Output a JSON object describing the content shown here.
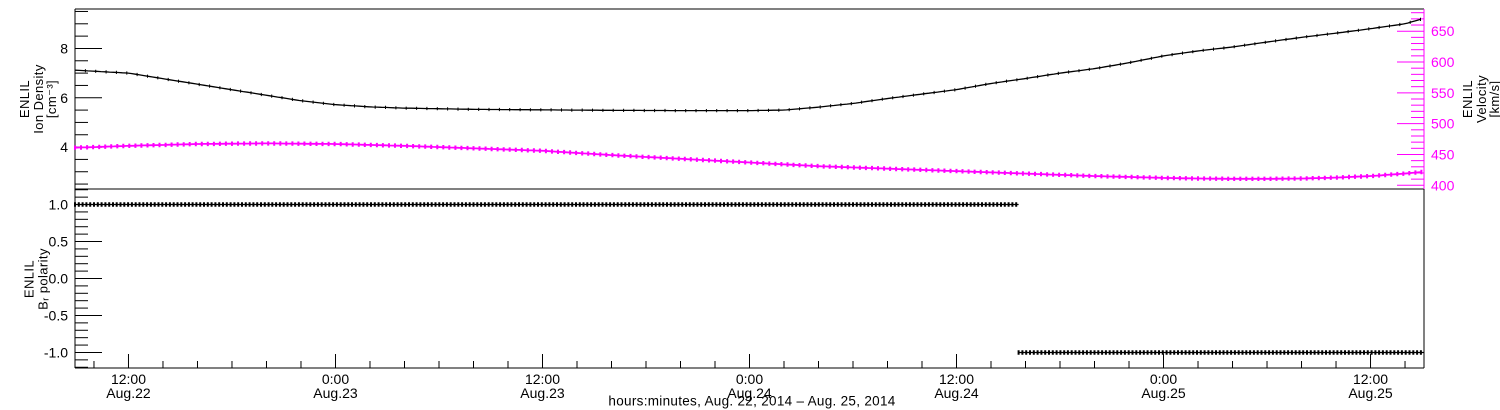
{
  "colors": {
    "background": "#ffffff",
    "foreground": "#000000",
    "velocity_accent": "#ff00ff"
  },
  "axis_titles": {
    "density": [
      "ENLIL",
      "Ion Density",
      "[cm⁻³]"
    ],
    "polarity": [
      "ENLIL",
      "Bᵣ polarity"
    ],
    "velocity": [
      "ENLIL",
      "Velocity",
      "[km/s]"
    ]
  },
  "x_axis": {
    "title": "hours:minutes, Aug. 22, 2014 – Aug. 25, 2014",
    "range_hours": [
      8.9,
      87.1
    ],
    "minor_step_hours": 2,
    "major_ticks": [
      {
        "hour": 12,
        "time": "12:00",
        "date": "Aug.22"
      },
      {
        "hour": 24,
        "time": "0:00",
        "date": "Aug.23"
      },
      {
        "hour": 36,
        "time": "12:00",
        "date": "Aug.23"
      },
      {
        "hour": 48,
        "time": "0:00",
        "date": "Aug.24"
      },
      {
        "hour": 60,
        "time": "12:00",
        "date": "Aug.24"
      },
      {
        "hour": 72,
        "time": "0:00",
        "date": "Aug.25"
      },
      {
        "hour": 84,
        "time": "12:00",
        "date": "Aug.25"
      }
    ]
  },
  "chart_data": [
    {
      "type": "line",
      "panel": "top",
      "x_unit": "hours from Aug 22 2014 00:00",
      "xlim": [
        8.9,
        87.1
      ],
      "left_axis": {
        "label": "ENLIL Ion Density [cm⁻³]",
        "lim": [
          2.3,
          9.6
        ],
        "major_ticks": [
          4,
          6,
          8
        ],
        "minor_step": 0.5,
        "decimals": 0,
        "color": "#000000"
      },
      "right_axis": {
        "label": "ENLIL Velocity [km/s]",
        "lim": [
          394,
          686
        ],
        "major_ticks": [
          400,
          450,
          500,
          550,
          600,
          650
        ],
        "minor_step": 10,
        "decimals": 0,
        "color": "#ff00ff"
      },
      "series": [
        {
          "name": "ion_density",
          "axis": "left",
          "color": "#000000",
          "x": [
            8.9,
            12,
            16,
            20,
            22,
            24,
            26,
            28,
            32,
            36,
            40,
            44,
            48,
            50,
            52,
            54,
            56,
            58,
            60,
            62,
            64,
            66,
            68,
            70,
            72,
            74,
            76,
            78,
            80,
            82,
            84,
            86,
            87.1
          ],
          "y": [
            7.12,
            7.0,
            6.55,
            6.1,
            5.88,
            5.72,
            5.63,
            5.58,
            5.53,
            5.51,
            5.49,
            5.48,
            5.48,
            5.5,
            5.62,
            5.77,
            5.97,
            6.15,
            6.33,
            6.58,
            6.78,
            7.0,
            7.18,
            7.42,
            7.7,
            7.9,
            8.06,
            8.26,
            8.45,
            8.62,
            8.8,
            9.0,
            9.22
          ]
        },
        {
          "name": "velocity",
          "axis": "right",
          "color": "#ff00ff",
          "x": [
            8.9,
            12,
            16,
            20,
            24,
            28,
            32,
            36,
            40,
            44,
            48,
            52,
            56,
            60,
            64,
            68,
            72,
            74,
            76,
            78,
            80,
            82,
            84,
            86,
            87.1
          ],
          "y": [
            461,
            464,
            467,
            468,
            467,
            464,
            460,
            456,
            449,
            443,
            437,
            431,
            427,
            423,
            419,
            415,
            412,
            411,
            410.5,
            410.5,
            411,
            412.5,
            415,
            419,
            422
          ]
        }
      ]
    },
    {
      "type": "step",
      "panel": "bottom",
      "xlim": [
        8.9,
        87.1
      ],
      "left_axis": {
        "label": "ENLIL Bᵣ polarity",
        "lim": [
          -1.21,
          1.21
        ],
        "major_ticks": [
          -1.0,
          -0.5,
          0.0,
          0.5,
          1.0
        ],
        "minor_step": 0.1,
        "decimals": 1,
        "color": "#000000"
      },
      "series": [
        {
          "name": "br_polarity",
          "color": "#000000",
          "segments": [
            {
              "x_start": 8.9,
              "x_end": 63.6,
              "y": 1.0
            },
            {
              "x_start": 63.6,
              "x_end": 87.1,
              "y": -1.0
            }
          ]
        }
      ]
    }
  ]
}
